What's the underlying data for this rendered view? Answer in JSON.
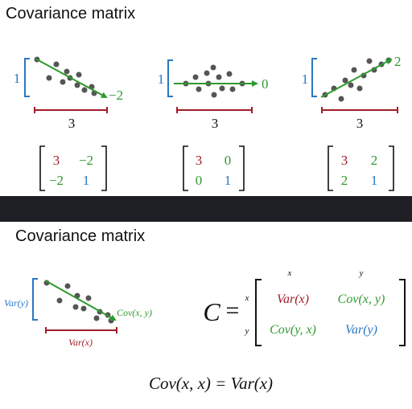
{
  "top": {
    "title": "Covariance matrix",
    "panels": [
      {
        "vertical_label": "1",
        "horizontal_label": "3",
        "slope_label": "−2",
        "matrix": [
          [
            "3",
            "−2"
          ],
          [
            "−2",
            "1"
          ]
        ]
      },
      {
        "vertical_label": "1",
        "horizontal_label": "3",
        "slope_label": "0",
        "matrix": [
          [
            "3",
            "0"
          ],
          [
            "0",
            "1"
          ]
        ]
      },
      {
        "vertical_label": "1",
        "horizontal_label": "3",
        "slope_label": "2",
        "matrix": [
          [
            "3",
            "2"
          ],
          [
            "2",
            "1"
          ]
        ]
      }
    ]
  },
  "bottom": {
    "title": "Covariance matrix",
    "scatter": {
      "vertical_label": "Var(y)",
      "horizontal_label": "Var(x)",
      "line_label": "Cov(x, y)"
    },
    "matrix": {
      "symbol": "C",
      "equals": "=",
      "col_headers": [
        "x",
        "y"
      ],
      "row_headers": [
        "x",
        "y"
      ],
      "cells": [
        [
          "Var(x)",
          "Cov(x, y)"
        ],
        [
          "Cov(y, x)",
          "Var(y)"
        ]
      ]
    },
    "identity": "Cov(x, x) = Var(x)"
  },
  "colors": {
    "red": "#a11d28",
    "green": "#2e9a2e",
    "blue": "#2a78c2",
    "dot": "#555555",
    "band": "#1f2026"
  }
}
